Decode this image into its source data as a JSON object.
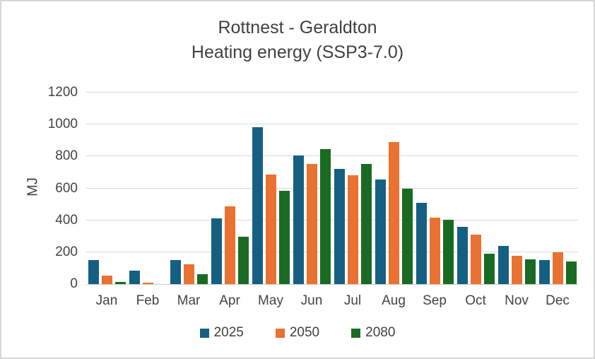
{
  "chart_data": {
    "type": "bar",
    "title": "Rottnest - Geraldton",
    "subtitle": "Heating energy (SSP3-7.0)",
    "ylabel": "MJ",
    "categories": [
      "Jan",
      "Feb",
      "Mar",
      "Apr",
      "May",
      "Jun",
      "Jul",
      "Aug",
      "Sep",
      "Oct",
      "Nov",
      "Dec"
    ],
    "series": [
      {
        "name": "2025",
        "color": "#156082",
        "values": [
          150,
          85,
          150,
          410,
          985,
          805,
          720,
          655,
          510,
          360,
          240,
          150
        ]
      },
      {
        "name": "2050",
        "color": "#E97132",
        "values": [
          55,
          10,
          125,
          485,
          685,
          755,
          680,
          890,
          415,
          310,
          175,
          200
        ]
      },
      {
        "name": "2080",
        "color": "#196B24",
        "values": [
          15,
          0,
          60,
          295,
          585,
          845,
          755,
          600,
          405,
          190,
          155,
          140
        ]
      }
    ],
    "ylim": [
      0,
      1200
    ],
    "y_ticks": [
      0,
      200,
      400,
      600,
      800,
      1000,
      1200
    ],
    "grid": true,
    "legend_position": "bottom",
    "colors": {
      "gridline": "#d9d9d9",
      "axis_line": "#d0d0d0",
      "tick_text": "#444444",
      "title_text": "#404040"
    }
  }
}
